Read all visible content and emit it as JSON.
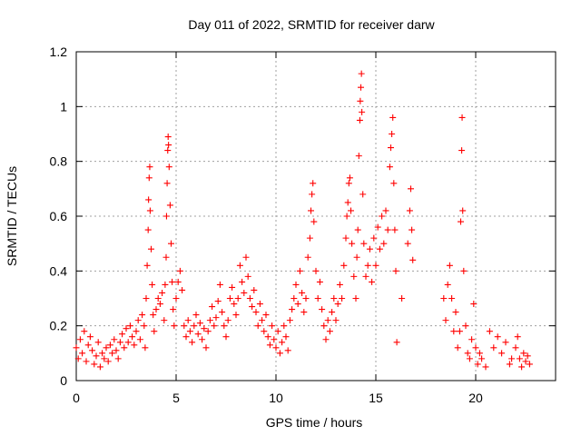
{
  "chart_data": {
    "type": "scatter",
    "title": "Day 011 of 2022, SRMTID for receiver darw",
    "xlabel": "GPS time / hours",
    "ylabel": "SRMTID / TECUs",
    "xlim": [
      0,
      24
    ],
    "ylim": [
      0,
      1.2
    ],
    "x_ticks": [
      0,
      5,
      10,
      15,
      20
    ],
    "x_tick_labels": [
      "0",
      "5",
      "10",
      "15",
      "20"
    ],
    "y_ticks": [
      0,
      0.2,
      0.4,
      0.6,
      0.8,
      1.0,
      1.2
    ],
    "y_tick_labels": [
      "0",
      "0.2",
      "0.4",
      "0.6",
      "0.8",
      "1",
      "1.2"
    ],
    "grid": true,
    "series": [
      {
        "name": "SRMTID",
        "color": "#ff0000",
        "marker": "plus",
        "points": [
          [
            0.0,
            0.12
          ],
          [
            0.1,
            0.08
          ],
          [
            0.2,
            0.15
          ],
          [
            0.3,
            0.1
          ],
          [
            0.4,
            0.18
          ],
          [
            0.5,
            0.07
          ],
          [
            0.6,
            0.13
          ],
          [
            0.7,
            0.16
          ],
          [
            0.8,
            0.11
          ],
          [
            0.9,
            0.06
          ],
          [
            1.0,
            0.09
          ],
          [
            1.1,
            0.14
          ],
          [
            1.2,
            0.05
          ],
          [
            1.3,
            0.1
          ],
          [
            1.4,
            0.08
          ],
          [
            1.5,
            0.12
          ],
          [
            1.6,
            0.07
          ],
          [
            1.7,
            0.13
          ],
          [
            1.8,
            0.1
          ],
          [
            1.9,
            0.15
          ],
          [
            2.0,
            0.11
          ],
          [
            2.1,
            0.08
          ],
          [
            2.2,
            0.14
          ],
          [
            2.3,
            0.17
          ],
          [
            2.4,
            0.12
          ],
          [
            2.5,
            0.19
          ],
          [
            2.6,
            0.14
          ],
          [
            2.7,
            0.2
          ],
          [
            2.8,
            0.16
          ],
          [
            2.9,
            0.13
          ],
          [
            3.0,
            0.18
          ],
          [
            3.1,
            0.22
          ],
          [
            3.2,
            0.15
          ],
          [
            3.3,
            0.24
          ],
          [
            3.4,
            0.2
          ],
          [
            3.45,
            0.12
          ],
          [
            3.5,
            0.3
          ],
          [
            3.55,
            0.42
          ],
          [
            3.6,
            0.55
          ],
          [
            3.62,
            0.66
          ],
          [
            3.65,
            0.74
          ],
          [
            3.68,
            0.78
          ],
          [
            3.7,
            0.62
          ],
          [
            3.75,
            0.48
          ],
          [
            3.8,
            0.35
          ],
          [
            3.85,
            0.24
          ],
          [
            3.9,
            0.18
          ],
          [
            4.0,
            0.26
          ],
          [
            4.1,
            0.3
          ],
          [
            4.2,
            0.28
          ],
          [
            4.3,
            0.32
          ],
          [
            4.4,
            0.22
          ],
          [
            4.45,
            0.35
          ],
          [
            4.5,
            0.45
          ],
          [
            4.52,
            0.6
          ],
          [
            4.55,
            0.72
          ],
          [
            4.58,
            0.84
          ],
          [
            4.6,
            0.89
          ],
          [
            4.62,
            0.86
          ],
          [
            4.65,
            0.78
          ],
          [
            4.7,
            0.64
          ],
          [
            4.75,
            0.5
          ],
          [
            4.8,
            0.36
          ],
          [
            4.85,
            0.26
          ],
          [
            4.9,
            0.2
          ],
          [
            5.0,
            0.3
          ],
          [
            5.1,
            0.36
          ],
          [
            5.2,
            0.4
          ],
          [
            5.3,
            0.33
          ],
          [
            5.4,
            0.2
          ],
          [
            5.5,
            0.16
          ],
          [
            5.6,
            0.22
          ],
          [
            5.7,
            0.18
          ],
          [
            5.8,
            0.14
          ],
          [
            5.9,
            0.2
          ],
          [
            6.0,
            0.24
          ],
          [
            6.1,
            0.17
          ],
          [
            6.2,
            0.21
          ],
          [
            6.3,
            0.15
          ],
          [
            6.4,
            0.19
          ],
          [
            6.5,
            0.12
          ],
          [
            6.6,
            0.18
          ],
          [
            6.7,
            0.22
          ],
          [
            6.8,
            0.27
          ],
          [
            6.9,
            0.2
          ],
          [
            7.0,
            0.23
          ],
          [
            7.1,
            0.29
          ],
          [
            7.2,
            0.35
          ],
          [
            7.3,
            0.25
          ],
          [
            7.4,
            0.2
          ],
          [
            7.5,
            0.16
          ],
          [
            7.6,
            0.22
          ],
          [
            7.7,
            0.3
          ],
          [
            7.8,
            0.34
          ],
          [
            7.9,
            0.28
          ],
          [
            8.0,
            0.24
          ],
          [
            8.1,
            0.3
          ],
          [
            8.2,
            0.42
          ],
          [
            8.3,
            0.36
          ],
          [
            8.4,
            0.32
          ],
          [
            8.5,
            0.45
          ],
          [
            8.6,
            0.38
          ],
          [
            8.7,
            0.3
          ],
          [
            8.8,
            0.27
          ],
          [
            8.9,
            0.33
          ],
          [
            9.0,
            0.25
          ],
          [
            9.1,
            0.2
          ],
          [
            9.2,
            0.28
          ],
          [
            9.3,
            0.22
          ],
          [
            9.4,
            0.18
          ],
          [
            9.5,
            0.24
          ],
          [
            9.6,
            0.16
          ],
          [
            9.7,
            0.13
          ],
          [
            9.8,
            0.2
          ],
          [
            9.9,
            0.15
          ],
          [
            10.0,
            0.12
          ],
          [
            10.1,
            0.18
          ],
          [
            10.2,
            0.1
          ],
          [
            10.3,
            0.14
          ],
          [
            10.4,
            0.2
          ],
          [
            10.5,
            0.16
          ],
          [
            10.6,
            0.11
          ],
          [
            10.7,
            0.22
          ],
          [
            10.8,
            0.26
          ],
          [
            10.9,
            0.3
          ],
          [
            11.0,
            0.35
          ],
          [
            11.1,
            0.28
          ],
          [
            11.2,
            0.4
          ],
          [
            11.3,
            0.32
          ],
          [
            11.4,
            0.25
          ],
          [
            11.5,
            0.3
          ],
          [
            11.6,
            0.45
          ],
          [
            11.7,
            0.52
          ],
          [
            11.75,
            0.62
          ],
          [
            11.8,
            0.68
          ],
          [
            11.85,
            0.72
          ],
          [
            11.9,
            0.58
          ],
          [
            12.0,
            0.4
          ],
          [
            12.1,
            0.3
          ],
          [
            12.2,
            0.36
          ],
          [
            12.3,
            0.26
          ],
          [
            12.4,
            0.2
          ],
          [
            12.5,
            0.15
          ],
          [
            12.6,
            0.22
          ],
          [
            12.7,
            0.18
          ],
          [
            12.8,
            0.25
          ],
          [
            12.9,
            0.3
          ],
          [
            13.0,
            0.22
          ],
          [
            13.1,
            0.28
          ],
          [
            13.2,
            0.35
          ],
          [
            13.3,
            0.3
          ],
          [
            13.4,
            0.42
          ],
          [
            13.5,
            0.52
          ],
          [
            13.55,
            0.6
          ],
          [
            13.6,
            0.65
          ],
          [
            13.65,
            0.72
          ],
          [
            13.7,
            0.74
          ],
          [
            13.75,
            0.62
          ],
          [
            13.8,
            0.5
          ],
          [
            13.9,
            0.38
          ],
          [
            14.0,
            0.3
          ],
          [
            14.05,
            0.45
          ],
          [
            14.1,
            0.55
          ],
          [
            14.15,
            0.82
          ],
          [
            14.2,
            0.95
          ],
          [
            14.22,
            1.02
          ],
          [
            14.25,
            1.07
          ],
          [
            14.28,
            1.12
          ],
          [
            14.3,
            0.98
          ],
          [
            14.35,
            0.68
          ],
          [
            14.4,
            0.5
          ],
          [
            14.5,
            0.38
          ],
          [
            14.6,
            0.42
          ],
          [
            14.7,
            0.48
          ],
          [
            14.8,
            0.36
          ],
          [
            14.9,
            0.52
          ],
          [
            15.0,
            0.42
          ],
          [
            15.1,
            0.56
          ],
          [
            15.2,
            0.48
          ],
          [
            15.3,
            0.6
          ],
          [
            15.4,
            0.5
          ],
          [
            15.5,
            0.62
          ],
          [
            15.6,
            0.55
          ],
          [
            15.7,
            0.78
          ],
          [
            15.75,
            0.85
          ],
          [
            15.8,
            0.9
          ],
          [
            15.85,
            0.96
          ],
          [
            15.9,
            0.72
          ],
          [
            15.95,
            0.55
          ],
          [
            16.0,
            0.4
          ],
          [
            16.05,
            0.14
          ],
          [
            16.3,
            0.3
          ],
          [
            16.6,
            0.5
          ],
          [
            16.7,
            0.62
          ],
          [
            16.75,
            0.7
          ],
          [
            16.8,
            0.55
          ],
          [
            16.85,
            0.44
          ],
          [
            18.4,
            0.3
          ],
          [
            18.5,
            0.22
          ],
          [
            18.6,
            0.35
          ],
          [
            18.7,
            0.42
          ],
          [
            18.8,
            0.3
          ],
          [
            18.9,
            0.18
          ],
          [
            19.0,
            0.25
          ],
          [
            19.1,
            0.12
          ],
          [
            19.2,
            0.18
          ],
          [
            19.25,
            0.58
          ],
          [
            19.3,
            0.84
          ],
          [
            19.32,
            0.96
          ],
          [
            19.35,
            0.62
          ],
          [
            19.4,
            0.4
          ],
          [
            19.5,
            0.2
          ],
          [
            19.6,
            0.1
          ],
          [
            19.7,
            0.08
          ],
          [
            19.8,
            0.15
          ],
          [
            19.9,
            0.28
          ],
          [
            20.0,
            0.12
          ],
          [
            20.1,
            0.06
          ],
          [
            20.2,
            0.1
          ],
          [
            20.3,
            0.08
          ],
          [
            20.5,
            0.05
          ],
          [
            20.7,
            0.18
          ],
          [
            20.9,
            0.12
          ],
          [
            21.1,
            0.16
          ],
          [
            21.3,
            0.1
          ],
          [
            21.5,
            0.14
          ],
          [
            21.7,
            0.06
          ],
          [
            21.8,
            0.08
          ],
          [
            22.0,
            0.12
          ],
          [
            22.1,
            0.16
          ],
          [
            22.2,
            0.08
          ],
          [
            22.3,
            0.05
          ],
          [
            22.4,
            0.1
          ],
          [
            22.5,
            0.07
          ],
          [
            22.6,
            0.09
          ],
          [
            22.7,
            0.06
          ]
        ]
      }
    ]
  }
}
